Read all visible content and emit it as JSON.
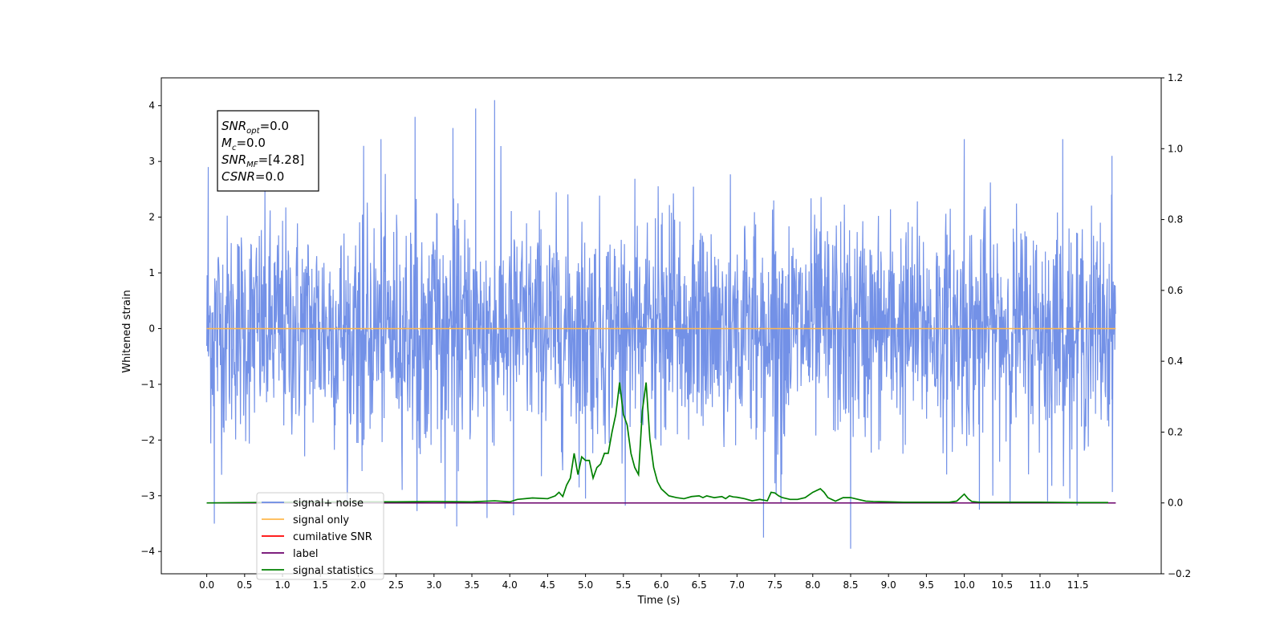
{
  "chart_data": {
    "type": "line",
    "xlabel": "Time (s)",
    "ylabel": "Whitened strain",
    "x_ticks": [
      "0.0",
      "0.5",
      "1.0",
      "1.5",
      "2.0",
      "2.5",
      "3.0",
      "3.5",
      "4.0",
      "4.5",
      "5.0",
      "5.5",
      "6.0",
      "6.5",
      "7.0",
      "7.5",
      "8.0",
      "8.5",
      "9.0",
      "9.5",
      "10.0",
      "10.5",
      "11.0",
      "11.5"
    ],
    "xlim": [
      -0.6,
      12.6
    ],
    "ylim_left": [
      -4.4,
      4.5
    ],
    "ylim_right": [
      -0.2,
      1.2
    ],
    "y_left_ticks": [
      "−4",
      "−3",
      "−2",
      "−1",
      "0",
      "1",
      "2",
      "3",
      "4"
    ],
    "y_right_ticks": [
      "−0.2",
      "0.0",
      "0.2",
      "0.4",
      "0.6",
      "0.8",
      "1.0",
      "1.2"
    ],
    "annotation": {
      "lines": [
        {
          "base": "SNR",
          "sub": "opt",
          "value": "=0.0"
        },
        {
          "base": "M",
          "sub": "c",
          "value": "=0.0"
        },
        {
          "base": "SNR",
          "sub": "MF",
          "value": "=[4.28]"
        },
        {
          "base": "CSNR",
          "sub": "",
          "value": "=0.0"
        }
      ]
    },
    "legend": {
      "placement": "lower-left",
      "entries": [
        {
          "label": "signal+ noise",
          "color": "#6b8be6"
        },
        {
          "label": "signal only",
          "color": "#ffb84d"
        },
        {
          "label": "cumilative SNR",
          "color": "#ff0000"
        },
        {
          "label": "label",
          "color": "#6b006b"
        },
        {
          "label": "signal statistics",
          "color": "#008000"
        }
      ]
    },
    "series": [
      {
        "name": "signal+ noise",
        "color": "#6b8be6",
        "axis": "left",
        "x_range": [
          0.0,
          12.0
        ],
        "amplitude_std": 1.0,
        "peaks_high": [
          [
            0.02,
            2.9
          ],
          [
            3.8,
            4.1
          ],
          [
            3.55,
            3.95
          ],
          [
            2.75,
            3.8
          ],
          [
            10.0,
            3.4
          ],
          [
            11.3,
            3.4
          ],
          [
            11.95,
            3.1
          ],
          [
            2.3,
            3.4
          ],
          [
            3.25,
            3.6
          ]
        ],
        "peaks_low": [
          [
            0.1,
            -3.5
          ],
          [
            3.3,
            -3.55
          ],
          [
            7.35,
            -3.75
          ],
          [
            8.5,
            -3.95
          ],
          [
            3.7,
            -3.4
          ],
          [
            4.05,
            -3.35
          ],
          [
            10.2,
            -3.25
          ],
          [
            11.1,
            -3.1
          ],
          [
            5.0,
            -3.05
          ]
        ]
      },
      {
        "name": "signal only",
        "color": "#ffb84d",
        "axis": "left",
        "x": [
          0.0,
          12.0
        ],
        "y": [
          0.0,
          0.0
        ]
      },
      {
        "name": "label",
        "color": "#6b006b",
        "axis": "right",
        "x": [
          0.0,
          12.0
        ],
        "y": [
          0.0,
          0.0
        ]
      },
      {
        "name": "signal statistics",
        "color": "#008000",
        "axis": "right",
        "x": [
          0.0,
          1.0,
          2.0,
          2.5,
          3.0,
          3.5,
          3.8,
          4.0,
          4.1,
          4.3,
          4.5,
          4.6,
          4.65,
          4.7,
          4.75,
          4.8,
          4.85,
          4.9,
          4.95,
          5.0,
          5.05,
          5.1,
          5.15,
          5.2,
          5.25,
          5.3,
          5.35,
          5.4,
          5.45,
          5.5,
          5.55,
          5.6,
          5.65,
          5.7,
          5.75,
          5.8,
          5.85,
          5.9,
          5.95,
          6.0,
          6.05,
          6.1,
          6.2,
          6.3,
          6.4,
          6.5,
          6.55,
          6.6,
          6.7,
          6.8,
          6.85,
          6.9,
          6.95,
          7.0,
          7.1,
          7.2,
          7.3,
          7.4,
          7.45,
          7.5,
          7.55,
          7.6,
          7.7,
          7.8,
          7.9,
          8.0,
          8.1,
          8.15,
          8.2,
          8.3,
          8.4,
          8.5,
          8.6,
          8.7,
          8.8,
          9.0,
          9.2,
          9.5,
          9.8,
          9.9,
          10.0,
          10.05,
          10.1,
          10.2,
          10.5,
          11.0,
          11.5,
          11.9
        ],
        "y": [
          0.0,
          0.002,
          0.003,
          0.003,
          0.004,
          0.003,
          0.006,
          0.003,
          0.01,
          0.014,
          0.012,
          0.02,
          0.03,
          0.018,
          0.05,
          0.07,
          0.14,
          0.08,
          0.13,
          0.12,
          0.12,
          0.07,
          0.1,
          0.11,
          0.14,
          0.14,
          0.2,
          0.25,
          0.34,
          0.25,
          0.22,
          0.14,
          0.1,
          0.08,
          0.26,
          0.34,
          0.18,
          0.1,
          0.06,
          0.04,
          0.03,
          0.02,
          0.015,
          0.012,
          0.018,
          0.02,
          0.015,
          0.02,
          0.015,
          0.018,
          0.012,
          0.02,
          0.017,
          0.016,
          0.012,
          0.006,
          0.01,
          0.006,
          0.03,
          0.028,
          0.02,
          0.015,
          0.01,
          0.01,
          0.015,
          0.03,
          0.04,
          0.03,
          0.015,
          0.005,
          0.015,
          0.015,
          0.01,
          0.005,
          0.004,
          0.003,
          0.002,
          0.002,
          0.002,
          0.005,
          0.025,
          0.012,
          0.004,
          0.002,
          0.002,
          0.002,
          0.001,
          0.001
        ]
      }
    ]
  }
}
